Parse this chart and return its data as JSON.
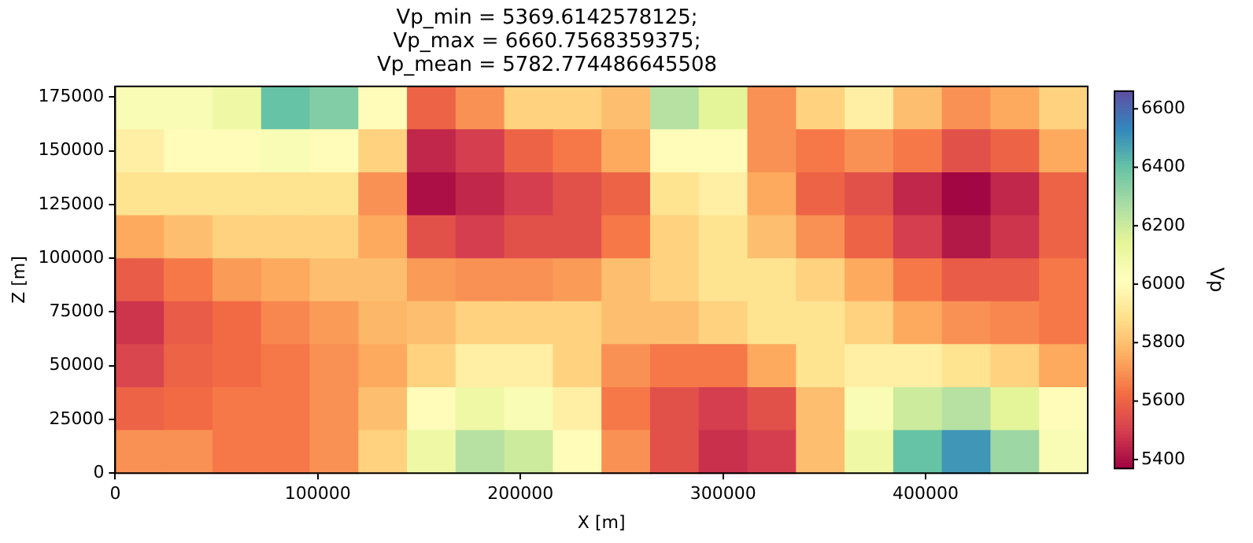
{
  "chart_data": {
    "type": "heatmap",
    "title": "Vp_min = 5369.6142578125;\nVp_max = 6660.7568359375;\nVp_mean = 5782.774486645508",
    "xlabel": "X [m]",
    "ylabel": "Z [m]",
    "clabel": "Vp",
    "x": [
      12000,
      36000,
      60000,
      84000,
      108000,
      132000,
      156000,
      180000,
      204000,
      228000,
      252000,
      276000,
      300000,
      324000,
      348000,
      372000,
      396000,
      420000,
      444000,
      468000
    ],
    "y": [
      170000,
      150000,
      130000,
      110000,
      90000,
      70000,
      50000,
      30000,
      10000
    ],
    "xlim": [
      0,
      480000
    ],
    "ylim": [
      0,
      180000
    ],
    "xticks": [
      0,
      100000,
      200000,
      300000,
      400000
    ],
    "yticks": [
      0,
      25000,
      50000,
      75000,
      100000,
      125000,
      150000,
      175000
    ],
    "clim": [
      5369.6142578125,
      6660.7568359375
    ],
    "cticks": [
      5400,
      5600,
      5800,
      6000,
      6200,
      6400,
      6600
    ],
    "cells": [
      [
        6050,
        6050,
        6100,
        6400,
        6350,
        6000,
        5600,
        5700,
        5850,
        5850,
        5800,
        6250,
        6150,
        5700,
        5850,
        5950,
        5800,
        5700,
        5750,
        5850
      ],
      [
        5950,
        6000,
        6000,
        6050,
        6000,
        5850,
        5450,
        5500,
        5600,
        5650,
        5750,
        6000,
        6000,
        5700,
        5650,
        5700,
        5650,
        5550,
        5600,
        5750
      ],
      [
        5900,
        5900,
        5900,
        5900,
        5900,
        5700,
        5400,
        5450,
        5500,
        5550,
        5600,
        5900,
        5950,
        5750,
        5600,
        5550,
        5450,
        5380,
        5450,
        5600
      ],
      [
        5750,
        5800,
        5850,
        5850,
        5850,
        5750,
        5550,
        5500,
        5550,
        5550,
        5650,
        5850,
        5900,
        5800,
        5700,
        5600,
        5500,
        5420,
        5480,
        5600
      ],
      [
        5580,
        5650,
        5720,
        5750,
        5800,
        5800,
        5720,
        5700,
        5700,
        5720,
        5800,
        5850,
        5900,
        5900,
        5850,
        5750,
        5650,
        5580,
        5580,
        5650
      ],
      [
        5480,
        5580,
        5620,
        5680,
        5720,
        5780,
        5800,
        5850,
        5850,
        5850,
        5800,
        5800,
        5850,
        5900,
        5900,
        5850,
        5750,
        5700,
        5680,
        5650
      ],
      [
        5520,
        5600,
        5620,
        5650,
        5700,
        5750,
        5850,
        5950,
        5950,
        5850,
        5700,
        5650,
        5650,
        5750,
        5900,
        5950,
        5950,
        5900,
        5850,
        5750
      ],
      [
        5600,
        5620,
        5650,
        5650,
        5700,
        5800,
        6000,
        6100,
        6050,
        5950,
        5650,
        5550,
        5500,
        5550,
        5800,
        6050,
        6200,
        6250,
        6150,
        6000
      ],
      [
        5700,
        5700,
        5650,
        5650,
        5700,
        5850,
        6100,
        6250,
        6200,
        6000,
        5700,
        5550,
        5470,
        5500,
        5800,
        6100,
        6400,
        6500,
        6300,
        6050
      ]
    ]
  }
}
